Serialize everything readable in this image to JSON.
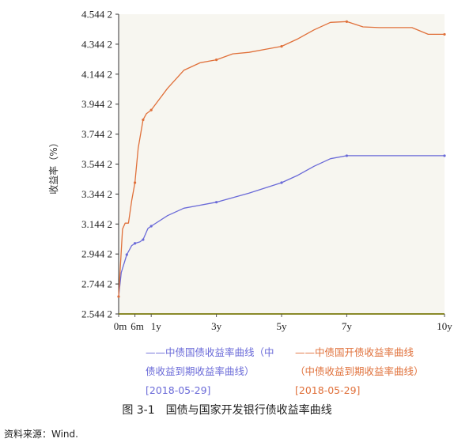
{
  "chart_data": {
    "type": "line",
    "ylabel": "收益率（%）",
    "ylim": [
      2.5442,
      4.5442
    ],
    "yticks": [
      "2.544 2",
      "2.744 2",
      "2.944 2",
      "3.144 2",
      "3.344 2",
      "3.544 2",
      "3.744 2",
      "3.944 2",
      "4.144 2",
      "4.344 2",
      "4.544 2"
    ],
    "xlim": [
      0,
      10
    ],
    "xticks": [
      {
        "v": 0,
        "label": "0m"
      },
      {
        "v": 0.5,
        "label": "6m"
      },
      {
        "v": 1,
        "label": "1y"
      },
      {
        "v": 3,
        "label": "3y"
      },
      {
        "v": 5,
        "label": "5y"
      },
      {
        "v": 7,
        "label": "7y"
      },
      {
        "v": 10,
        "label": "10y"
      }
    ],
    "series": [
      {
        "name": "中债国债收益率曲线（中债收益到期收益率曲线）[2018-05-29]",
        "color": "#6a6ad8",
        "markers": [
          0,
          0.25,
          0.5,
          0.75,
          1,
          3,
          5,
          7,
          10
        ],
        "points": [
          [
            0,
            2.66
          ],
          [
            0.08,
            2.82
          ],
          [
            0.25,
            2.94
          ],
          [
            0.4,
            3.0
          ],
          [
            0.5,
            3.015
          ],
          [
            0.65,
            3.025
          ],
          [
            0.75,
            3.04
          ],
          [
            0.9,
            3.115
          ],
          [
            1,
            3.13
          ],
          [
            1.5,
            3.2
          ],
          [
            2,
            3.25
          ],
          [
            2.5,
            3.27
          ],
          [
            3,
            3.29
          ],
          [
            4,
            3.35
          ],
          [
            5,
            3.42
          ],
          [
            5.5,
            3.47
          ],
          [
            6,
            3.53
          ],
          [
            6.5,
            3.58
          ],
          [
            7,
            3.6
          ],
          [
            8,
            3.6
          ],
          [
            9,
            3.6
          ],
          [
            10,
            3.6
          ]
        ]
      },
      {
        "name": "中债国开债收益率曲线（中债收益到期收益率曲线）[2018-05-29]",
        "color": "#e0703a",
        "markers": [
          0,
          0.5,
          0.75,
          1,
          3,
          5,
          7,
          10
        ],
        "points": [
          [
            0,
            2.66
          ],
          [
            0.12,
            3.11
          ],
          [
            0.2,
            3.15
          ],
          [
            0.3,
            3.15
          ],
          [
            0.4,
            3.3
          ],
          [
            0.5,
            3.42
          ],
          [
            0.6,
            3.65
          ],
          [
            0.75,
            3.84
          ],
          [
            0.85,
            3.88
          ],
          [
            1,
            3.905
          ],
          [
            1.5,
            4.05
          ],
          [
            2,
            4.17
          ],
          [
            2.5,
            4.22
          ],
          [
            3,
            4.24
          ],
          [
            3.5,
            4.28
          ],
          [
            4,
            4.29
          ],
          [
            4.5,
            4.31
          ],
          [
            5,
            4.33
          ],
          [
            5.5,
            4.38
          ],
          [
            6,
            4.44
          ],
          [
            6.5,
            4.49
          ],
          [
            7,
            4.495
          ],
          [
            7.5,
            4.46
          ],
          [
            8,
            4.455
          ],
          [
            8.5,
            4.455
          ],
          [
            9,
            4.455
          ],
          [
            9.5,
            4.41
          ],
          [
            10,
            4.41
          ]
        ]
      }
    ]
  },
  "legend": {
    "items": [
      {
        "prefix": "——",
        "text": "中债国债收益率曲线（中债收益到期收益率曲线）[2018-05-29]"
      },
      {
        "prefix": "——",
        "text": "中债国开债收益率曲线（中债收益到期收益率曲线）[2018-05-29]"
      }
    ]
  },
  "caption": {
    "number": "图 3-1",
    "text": "国债与国家开发银行债收益率曲线"
  },
  "source": "资料来源：Wind."
}
